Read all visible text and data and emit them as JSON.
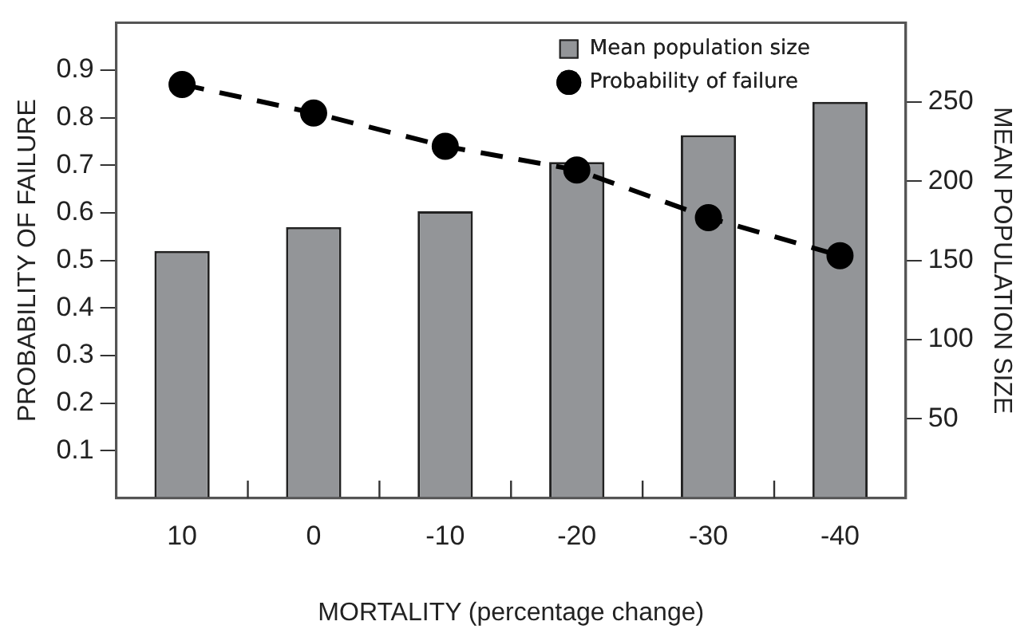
{
  "chart_data": {
    "type": "bar",
    "xlabel": "MORTALITY (percentage change)",
    "ylabel": "PROBABILITY OF FAILURE",
    "y2label": "MEAN POPULATION SIZE",
    "categories": [
      "10",
      "0",
      "-10",
      "-20",
      "-30",
      "-40"
    ],
    "series": [
      {
        "name": "Mean population size",
        "axis": "y2",
        "color": "#939598",
        "values": [
          156,
          171,
          181,
          212,
          229,
          250
        ]
      },
      {
        "name": "Probability of failure",
        "type": "line",
        "axis": "y",
        "color": "#000000",
        "values": [
          0.87,
          0.81,
          0.74,
          0.69,
          0.59,
          0.51
        ],
        "marker": "circle",
        "line_style": "dashed"
      }
    ],
    "ylim": [
      0,
      1
    ],
    "yticks": [
      0.1,
      0.2,
      0.3,
      0.4,
      0.5,
      0.6,
      0.7,
      0.8,
      0.9
    ],
    "y2lim": [
      0,
      300
    ],
    "y2ticks": [
      50,
      100,
      150,
      200,
      250
    ],
    "grid": false,
    "legend": "top right"
  }
}
